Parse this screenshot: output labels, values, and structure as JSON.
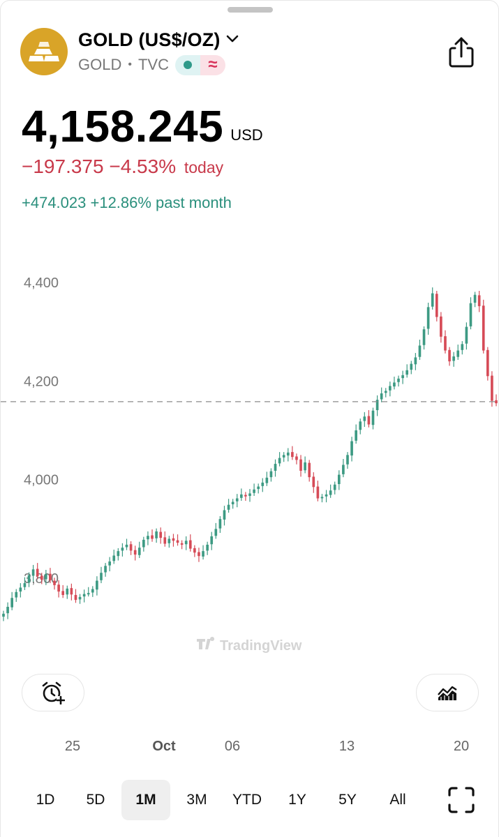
{
  "header": {
    "title": "GOLD (US$/OZ)",
    "symbol": "GOLD",
    "exchange": "TVC",
    "badge_icons": [
      "market-status-dot-icon",
      "trend-wave-icon"
    ],
    "logo_icon": "gold-bars-icon",
    "share_icon": "share-icon"
  },
  "quote": {
    "price": "4,158.245",
    "currency": "USD",
    "change_today": "−197.375 −4.53%",
    "change_today_label": "today",
    "change_month": "+474.023 +12.86% past month"
  },
  "colors": {
    "up": "#3d9a83",
    "down": "#d64b57",
    "gold": "#d9a428",
    "reference_line": "#8a8a8a"
  },
  "watermark": "TradingView",
  "chart_data": {
    "type": "candlestick",
    "y_ticks": [
      "4,400",
      "4,200",
      "4,000",
      "3,800"
    ],
    "y_tick_values": [
      4400,
      4200,
      4000,
      3800
    ],
    "ylim": [
      3720,
      4430
    ],
    "x_ticks": [
      "25",
      "Oct",
      "06",
      "13",
      "20"
    ],
    "current_price_line": 4158.245,
    "closes": [
      3728,
      3742,
      3760,
      3772,
      3781,
      3790,
      3806,
      3818,
      3804,
      3797,
      3808,
      3796,
      3786,
      3773,
      3766,
      3779,
      3767,
      3756,
      3762,
      3768,
      3770,
      3778,
      3795,
      3811,
      3825,
      3834,
      3846,
      3855,
      3862,
      3868,
      3856,
      3848,
      3862,
      3878,
      3886,
      3880,
      3895,
      3882,
      3870,
      3880,
      3876,
      3872,
      3868,
      3876,
      3860,
      3852,
      3845,
      3855,
      3868,
      3885,
      3900,
      3920,
      3938,
      3949,
      3955,
      3962,
      3970,
      3966,
      3972,
      3980,
      3986,
      3994,
      4004,
      4017,
      4032,
      4044,
      4050,
      4055,
      4046,
      4040,
      4018,
      4035,
      4005,
      3985,
      3962,
      3965,
      3970,
      3978,
      3990,
      4010,
      4030,
      4050,
      4078,
      4100,
      4118,
      4128,
      4112,
      4140,
      4162,
      4175,
      4180,
      4190,
      4197,
      4205,
      4212,
      4222,
      4235,
      4248,
      4272,
      4305,
      4350,
      4378,
      4330,
      4290,
      4262,
      4240,
      4250,
      4262,
      4275,
      4310,
      4358,
      4375,
      4352,
      4262,
      4210,
      4160,
      4155
    ]
  },
  "controls": {
    "alert_icon": "alarm-add-icon",
    "indicators_icon": "chart-indicator-icon",
    "fullscreen_icon": "fullscreen-icon"
  },
  "ranges": [
    "1D",
    "5D",
    "1M",
    "3M",
    "YTD",
    "1Y",
    "5Y",
    "All"
  ],
  "active_range": "1M"
}
